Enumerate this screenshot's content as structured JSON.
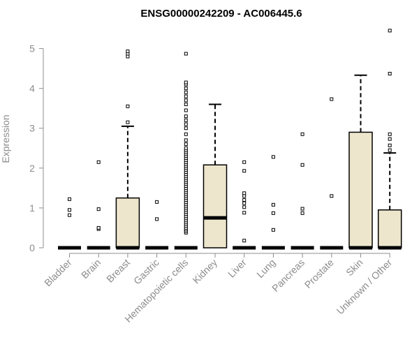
{
  "chart_data": {
    "type": "box",
    "title": "ENSG00000242209 - AC006445.6",
    "ylabel": "Expression",
    "xlabel": "",
    "ylim": [
      0,
      5.5
    ],
    "yticks": [
      0,
      1,
      2,
      3,
      4,
      5
    ],
    "grid": false,
    "box_fill": "#ede6cc",
    "stroke_color": "#000000",
    "axis_color": "#8c8c8c",
    "categories": [
      {
        "name": "Bladder",
        "q1": 0,
        "median": 0,
        "q3": 0,
        "whisker_low": 0,
        "whisker_high": 0,
        "outliers": [
          0.82,
          0.95,
          1.22
        ]
      },
      {
        "name": "Brain",
        "q1": 0,
        "median": 0,
        "q3": 0,
        "whisker_low": 0,
        "whisker_high": 0,
        "outliers": [
          0.47,
          0.5,
          0.97,
          2.15
        ]
      },
      {
        "name": "Breast",
        "q1": 0,
        "median": 0,
        "q3": 1.25,
        "whisker_low": 0,
        "whisker_high": 3.05,
        "outliers": [
          3.15,
          3.55,
          4.8,
          4.87,
          4.93
        ]
      },
      {
        "name": "Gastric",
        "q1": 0,
        "median": 0,
        "q3": 0,
        "whisker_low": 0,
        "whisker_high": 0,
        "outliers": [
          0.72,
          1.15
        ]
      },
      {
        "name": "Hematopoietic cells",
        "q1": 0,
        "median": 0,
        "q3": 0,
        "whisker_low": 0,
        "whisker_high": 0,
        "outliers": [
          0.38,
          0.42,
          0.46,
          0.5,
          0.55,
          0.6,
          0.65,
          0.7,
          0.75,
          0.8,
          0.85,
          0.9,
          0.95,
          1.0,
          1.05,
          1.1,
          1.15,
          1.2,
          1.25,
          1.3,
          1.35,
          1.4,
          1.45,
          1.5,
          1.55,
          1.6,
          1.65,
          1.7,
          1.75,
          1.8,
          1.85,
          1.9,
          1.95,
          2.0,
          2.05,
          2.1,
          2.15,
          2.2,
          2.25,
          2.3,
          2.35,
          2.4,
          2.45,
          2.5,
          2.6,
          2.7,
          2.85,
          3.0,
          3.1,
          3.2,
          3.3,
          3.45,
          3.6,
          3.7,
          3.8,
          3.9,
          4.0,
          4.1,
          4.15,
          4.87
        ]
      },
      {
        "name": "Kidney",
        "q1": 0,
        "median": 0.75,
        "q3": 2.08,
        "whisker_low": 0,
        "whisker_high": 3.6,
        "outliers": []
      },
      {
        "name": "Liver",
        "q1": 0,
        "median": 0,
        "q3": 0,
        "whisker_low": 0,
        "whisker_high": 0,
        "outliers": [
          0.18,
          0.88,
          1.02,
          1.12,
          1.2,
          1.3,
          1.37,
          1.93,
          2.15
        ]
      },
      {
        "name": "Lung",
        "q1": 0,
        "median": 0,
        "q3": 0,
        "whisker_low": 0,
        "whisker_high": 0,
        "outliers": [
          0.45,
          0.87,
          1.08,
          2.28
        ]
      },
      {
        "name": "Pancreas",
        "q1": 0,
        "median": 0,
        "q3": 0,
        "whisker_low": 0,
        "whisker_high": 0,
        "outliers": [
          0.87,
          0.98,
          2.08,
          2.85
        ]
      },
      {
        "name": "Prostate",
        "q1": 0,
        "median": 0,
        "q3": 0,
        "whisker_low": 0,
        "whisker_high": 0,
        "outliers": [
          1.3,
          3.73
        ]
      },
      {
        "name": "Skin",
        "q1": 0,
        "median": 0,
        "q3": 2.9,
        "whisker_low": 0,
        "whisker_high": 4.33,
        "outliers": []
      },
      {
        "name": "Unknown / Other",
        "q1": 0,
        "median": 0,
        "q3": 0.95,
        "whisker_low": 0,
        "whisker_high": 2.38,
        "outliers": [
          2.45,
          2.57,
          2.73,
          2.85,
          4.37,
          5.45
        ]
      }
    ]
  }
}
